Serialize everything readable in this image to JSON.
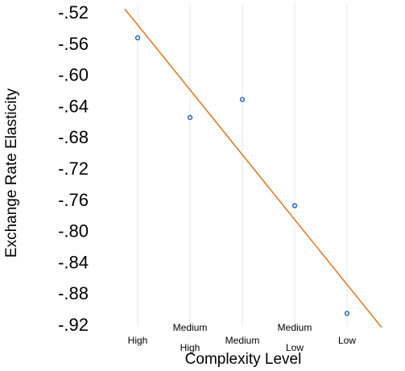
{
  "chart_data": {
    "type": "scatter",
    "categories": [
      "High",
      "Medium High",
      "Medium",
      "Medium Low",
      "Low"
    ],
    "x_tick_lines": [
      [
        "High"
      ],
      [
        "Medium",
        "High"
      ],
      [
        "Medium"
      ],
      [
        "Medium",
        "Low"
      ],
      [
        "Low"
      ]
    ],
    "values": [
      -0.553,
      -0.655,
      -0.632,
      -0.768,
      -0.906
    ],
    "y_tick_labels": [
      "-.52",
      "-.56",
      "-.60",
      "-.64",
      "-.68",
      "-.72",
      "-.76",
      "-.80",
      "-.84",
      "-.88",
      "-.92"
    ],
    "ylim": [
      -0.92,
      -0.52
    ],
    "xlabel": "Complexity Level",
    "ylabel": "Exchange Rate Elasticity",
    "grid": "vertical",
    "trendline": {
      "type": "linear",
      "start": -0.516,
      "end": -0.924
    },
    "colors": {
      "points": "#2e6db5",
      "trendline": "#e07b2a",
      "grid": "#e6e6e6"
    }
  }
}
